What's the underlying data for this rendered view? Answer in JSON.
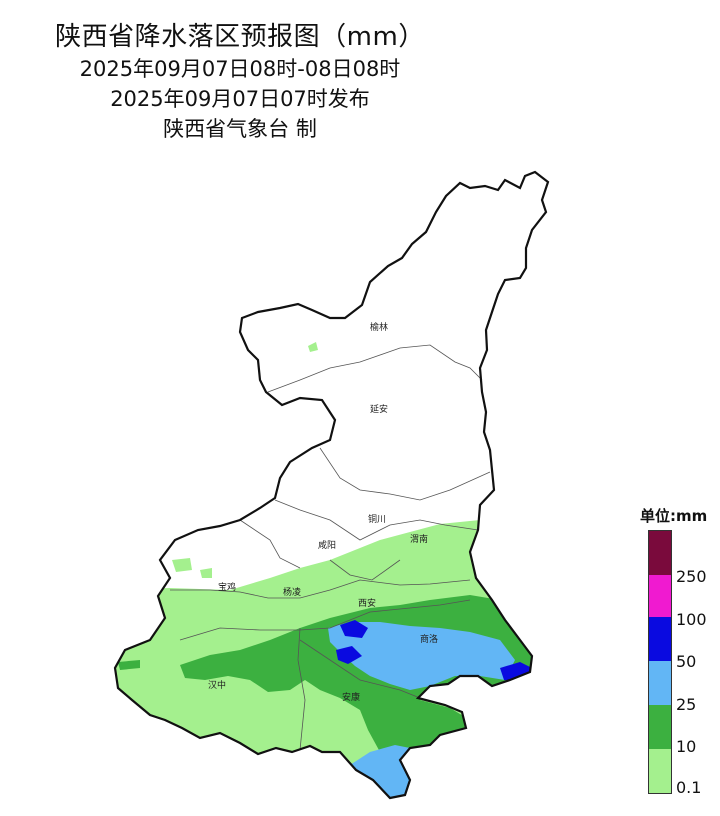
{
  "title": {
    "line1": "陕西省降水落区预报图（mm）",
    "line2": "2025年09月07日08时-08日08时",
    "line3": "2025年09月07日07时发布",
    "line4": "陕西省气象台 制"
  },
  "cities": {
    "yulin": "榆林",
    "yanan": "延安",
    "tongchuan": "铜川",
    "weinan": "渭南",
    "xianyang": "咸阳",
    "baoji": "宝鸡",
    "yangling": "杨凌",
    "xian": "西安",
    "shangluo": "商洛",
    "hanzhong": "汉中",
    "ankang": "安康"
  },
  "legend": {
    "title": "单位:mm",
    "labels": [
      "250",
      "100",
      "50",
      "25",
      "10",
      "0.1"
    ],
    "colors": {
      "250+": "#7a0a3c",
      "100-250": "#f01ad0",
      "50-100": "#0a0ae0",
      "25-50": "#62b6f5",
      "10-25": "#3cb040",
      "0.1-10": "#a4f08e"
    }
  }
}
